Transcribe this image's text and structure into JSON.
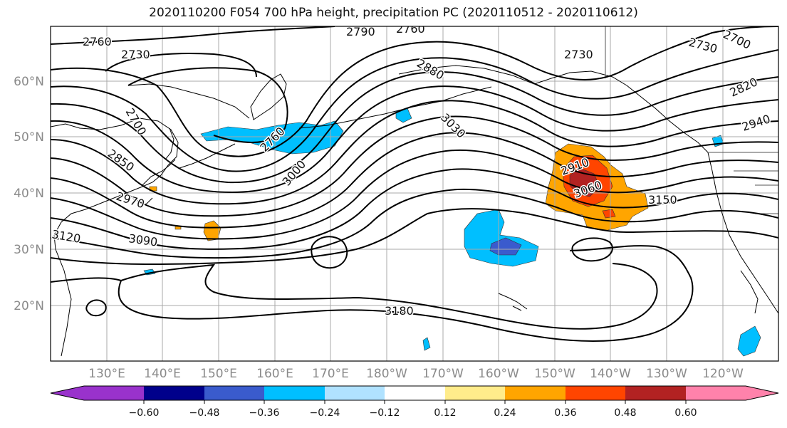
{
  "title": "2020110200 F054 700 hPa height, precipitation PC (2020110512 - 2020110612)",
  "map": {
    "lat_labels": [
      "20°N",
      "30°N",
      "40°N",
      "50°N",
      "60°N"
    ],
    "lon_labels": [
      "130°E",
      "140°E",
      "150°E",
      "160°E",
      "170°E",
      "180°W",
      "170°W",
      "160°W",
      "150°W",
      "140°W",
      "130°W",
      "120°W"
    ],
    "contour_labels": [
      "2760",
      "2730",
      "2790",
      "2760",
      "2730",
      "2700",
      "2730",
      "2880",
      "2820",
      "3030",
      "2940",
      "2700",
      "2760",
      "2850",
      "3000",
      "2910",
      "3060",
      "2970",
      "3150",
      "3090",
      "3120",
      "3180"
    ]
  },
  "colorbar": {
    "colors": [
      "#9932cc",
      "#00008b",
      "#3a5bcd",
      "#00bfff",
      "#b0e2ff",
      "#ffffff",
      "#ffec8b",
      "#ffa500",
      "#ff4500",
      "#b22222",
      "#ff82ab"
    ],
    "tick_labels": [
      "−0.60",
      "−0.48",
      "−0.36",
      "−0.24",
      "−0.12",
      "0.12",
      "0.24",
      "0.36",
      "0.48",
      "0.60"
    ]
  },
  "shading": {
    "blue_light": "#b0e2ff",
    "blue": "#00bfff",
    "blue_mid": "#3a5bcd",
    "orange": "#ffa500",
    "red": "#ff4500",
    "dark_red": "#b22222"
  }
}
